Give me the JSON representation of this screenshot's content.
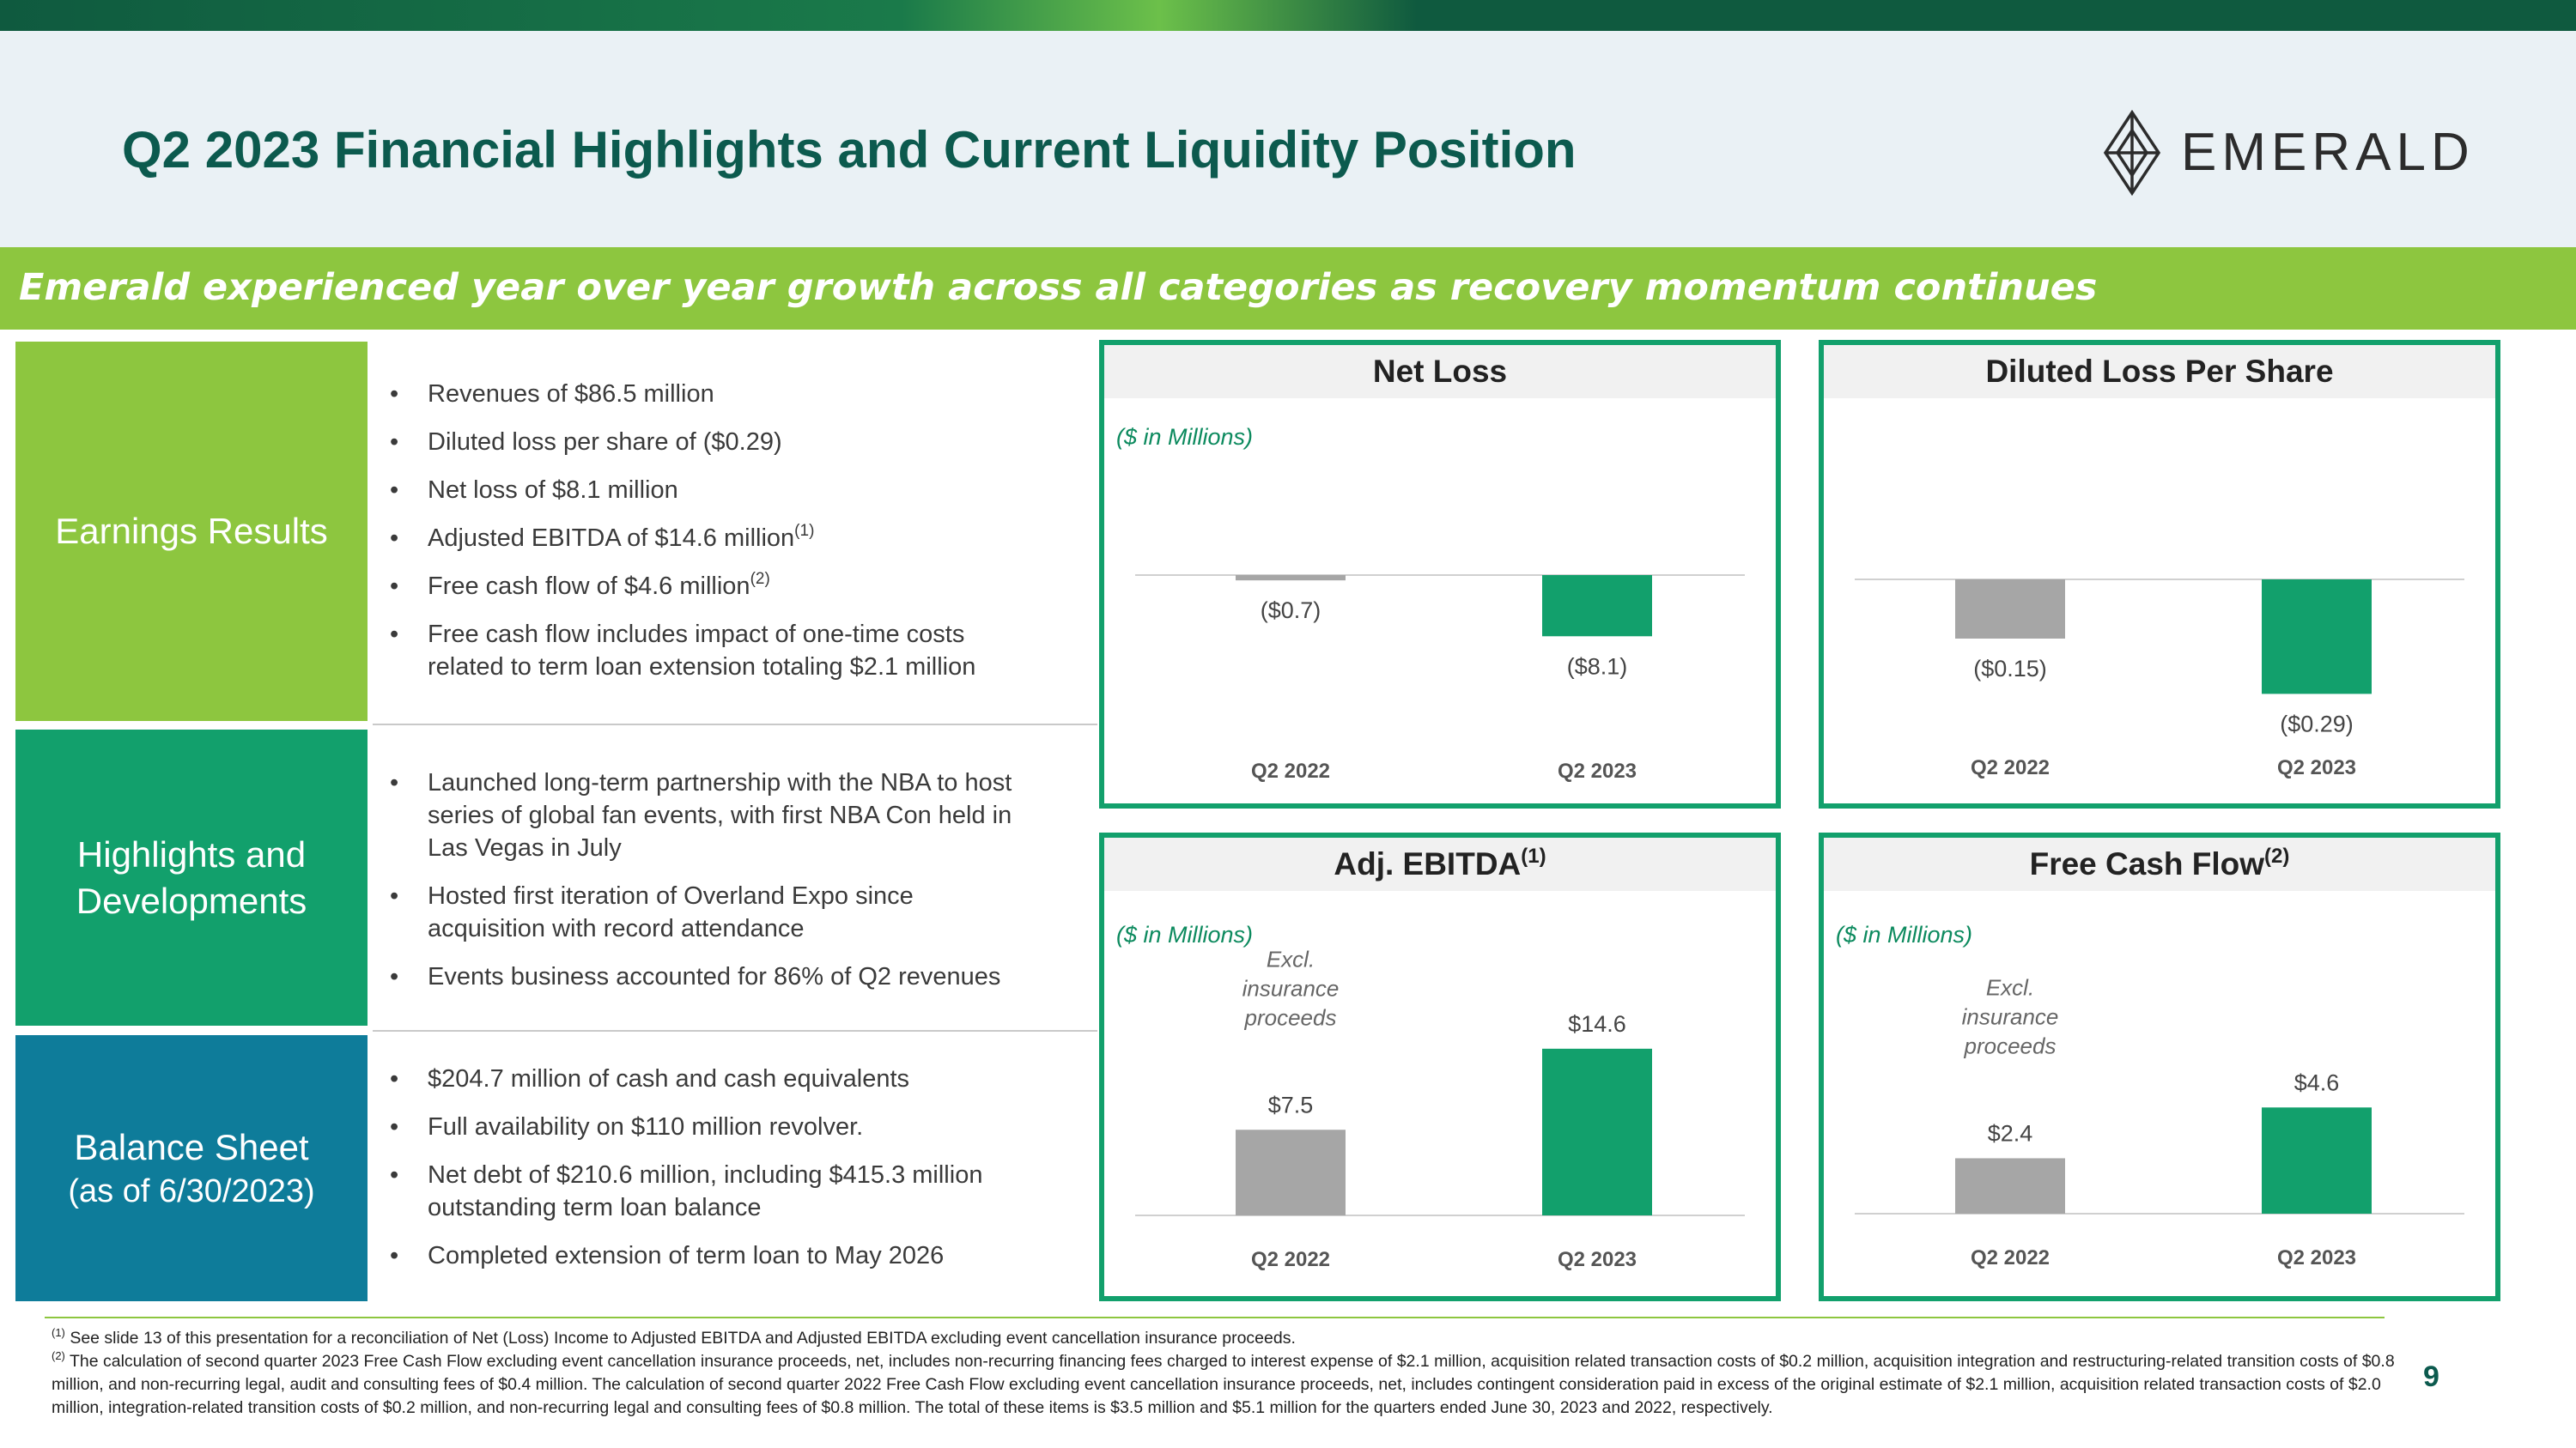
{
  "title": "Q2 2023 Financial Highlights and Current Liquidity Position",
  "logo_text": "EMERALD",
  "banner": "Emerald experienced year over year growth across all categories as recovery momentum continues",
  "sections": [
    {
      "label": "Earnings Results",
      "sublabel": "",
      "bullets": [
        {
          "text": "Revenues of $86.5 million",
          "sup": ""
        },
        {
          "text": "Diluted loss per share of ($0.29)",
          "sup": ""
        },
        {
          "text": "Net loss of $8.1 million",
          "sup": ""
        },
        {
          "text": "Adjusted EBITDA of $14.6 million",
          "sup": "(1)"
        },
        {
          "text": "Free cash flow of $4.6 million",
          "sup": "(2)"
        },
        {
          "text": "Free cash flow includes impact of one-time costs related to term loan extension totaling $2.1 million",
          "sup": ""
        }
      ]
    },
    {
      "label": "Highlights and Developments",
      "sublabel": "",
      "bullets": [
        {
          "text": "Launched long-term partnership with the NBA to host series of global fan events, with first NBA Con held in Las Vegas in July",
          "sup": ""
        },
        {
          "text": "Hosted first iteration of Overland Expo since acquisition with record attendance",
          "sup": ""
        },
        {
          "text": "Events business accounted for 86% of Q2 revenues",
          "sup": ""
        }
      ]
    },
    {
      "label": "Balance Sheet",
      "sublabel": "(as of 6/30/2023)",
      "bullets": [
        {
          "text": "$204.7 million of cash and cash equivalents",
          "sup": ""
        },
        {
          "text": "Full availability on $110 million revolver.",
          "sup": ""
        },
        {
          "text": "Net debt of $210.6 million, including $415.3 million outstanding term loan balance",
          "sup": ""
        },
        {
          "text": "Completed extension of term loan to May 2026",
          "sup": ""
        }
      ]
    }
  ],
  "chart_data": [
    {
      "type": "bar",
      "title": "Net Loss",
      "title_sup": "",
      "units": "($ in Millions)",
      "categories": [
        "Q2 2022",
        "Q2 2023"
      ],
      "values": [
        -0.7,
        -8.1
      ],
      "labels": [
        "($0.7)",
        "($8.1)"
      ],
      "colors": [
        "#a6a6a6",
        "#12a06c"
      ],
      "annotation": ""
    },
    {
      "type": "bar",
      "title": "Diluted Loss Per Share",
      "title_sup": "",
      "units": "",
      "categories": [
        "Q2 2022",
        "Q2 2023"
      ],
      "values": [
        -0.15,
        -0.29
      ],
      "labels": [
        "($0.15)",
        "($0.29)"
      ],
      "colors": [
        "#a6a6a6",
        "#12a06c"
      ],
      "annotation": ""
    },
    {
      "type": "bar",
      "title": "Adj. EBITDA",
      "title_sup": "(1)",
      "units": "($ in Millions)",
      "categories": [
        "Q2 2022",
        "Q2 2023"
      ],
      "values": [
        7.5,
        14.6
      ],
      "labels": [
        "$7.5",
        "$14.6"
      ],
      "colors": [
        "#a6a6a6",
        "#12a06c"
      ],
      "annotation": [
        "Excl.",
        "insurance",
        "proceeds"
      ]
    },
    {
      "type": "bar",
      "title": "Free Cash Flow",
      "title_sup": "(2)",
      "units": "($ in Millions)",
      "categories": [
        "Q2 2022",
        "Q2 2023"
      ],
      "values": [
        2.4,
        4.6
      ],
      "labels": [
        "$2.4",
        "$4.6"
      ],
      "colors": [
        "#a6a6a6",
        "#12a06c"
      ],
      "annotation": [
        "Excl.",
        "insurance",
        "proceeds"
      ]
    }
  ],
  "footnotes": [
    {
      "sup": "(1)",
      "text": "See slide 13 of this presentation for a reconciliation of Net (Loss) Income to Adjusted EBITDA and Adjusted EBITDA excluding event cancellation insurance proceeds."
    },
    {
      "sup": "(2)",
      "text": "The calculation of second quarter 2023 Free Cash Flow excluding event cancellation insurance proceeds, net, includes non-recurring financing fees charged to interest expense of $2.1 million, acquisition related transaction costs of $0.2 million, acquisition integration and restructuring-related transition costs of $0.8 million, and non-recurring legal, audit and consulting fees of $0.4 million. The calculation of second quarter 2022 Free Cash Flow excluding event cancellation insurance proceeds, net, includes contingent consideration paid in excess of the original estimate of $2.1 million, acquisition related transaction costs of $2.0 million, integration-related transition costs of $0.2 million, and non-recurring legal and consulting fees of $0.8 million. The total of these items is $3.5 million and $5.1 million for the quarters ended June 30, 2023 and 2022, respectively."
    }
  ],
  "page_number": "9"
}
